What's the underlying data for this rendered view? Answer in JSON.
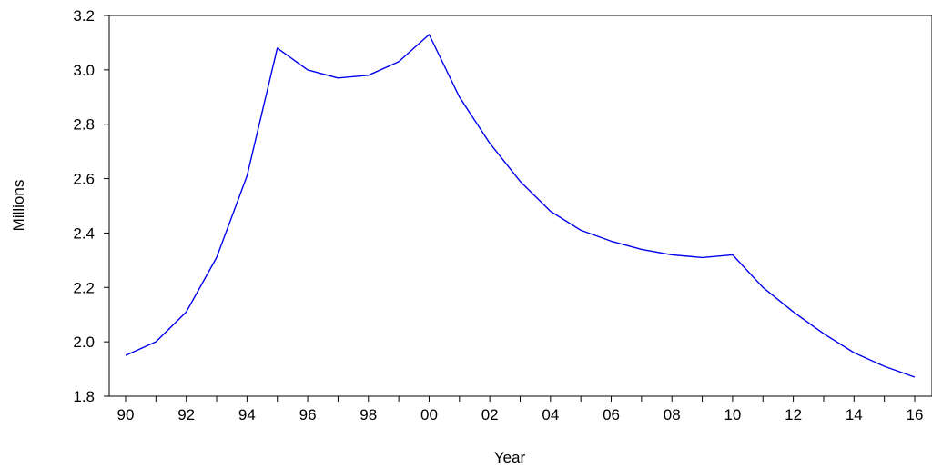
{
  "chart_data": {
    "type": "line",
    "title": "",
    "xlabel": "Year",
    "ylabel": "Millions",
    "ylim": [
      1.8,
      3.2
    ],
    "yticks": [
      1.8,
      2.0,
      2.2,
      2.4,
      2.6,
      2.8,
      3.0,
      3.2
    ],
    "ytick_labels": [
      "1.8",
      "2.0",
      "2.2",
      "2.4",
      "2.6",
      "2.8",
      "3.0",
      "3.2"
    ],
    "xlim": [
      1990,
      2016
    ],
    "xtick_labels": [
      "90",
      "92",
      "94",
      "96",
      "98",
      "00",
      "02",
      "04",
      "06",
      "08",
      "10",
      "12",
      "14",
      "16"
    ],
    "grid": false,
    "legend": "none",
    "series": [
      {
        "color": "#0000ee",
        "x": [
          1990,
          1991,
          1992,
          1993,
          1994,
          1995,
          1996,
          1997,
          1998,
          1999,
          2000,
          2001,
          2002,
          2003,
          2004,
          2005,
          2006,
          2007,
          2008,
          2009,
          2010,
          2011,
          2012,
          2013,
          2014,
          2015,
          2016
        ],
        "y": [
          1.95,
          2.0,
          2.11,
          2.31,
          2.61,
          3.08,
          3.0,
          2.97,
          2.98,
          3.03,
          3.13,
          2.9,
          2.73,
          2.59,
          2.48,
          2.41,
          2.37,
          2.34,
          2.32,
          2.31,
          2.32,
          2.2,
          2.11,
          2.03,
          1.96,
          1.91,
          1.87
        ]
      }
    ]
  }
}
